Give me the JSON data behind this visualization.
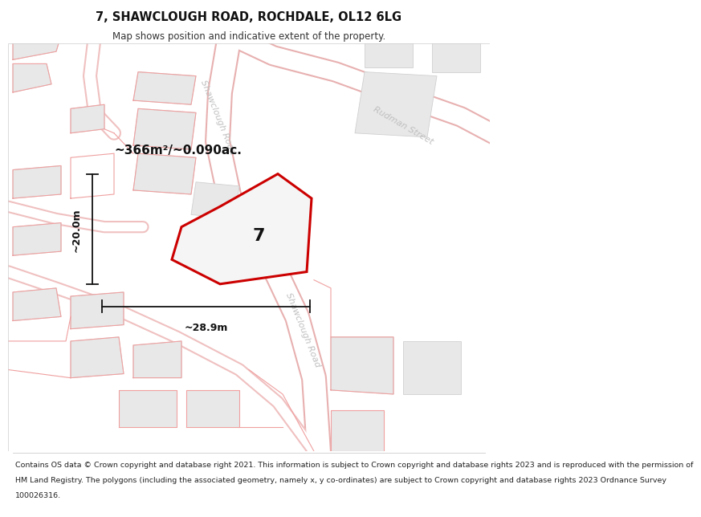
{
  "title": "7, SHAWCLOUGH ROAD, ROCHDALE, OL12 6LG",
  "subtitle": "Map shows position and indicative extent of the property.",
  "footer_lines": [
    "Contains OS data © Crown copyright and database right 2021. This information is subject to Crown copyright and database rights 2023 and is reproduced with the permission of",
    "HM Land Registry. The polygons (including the associated geometry, namely x, y co-ordinates) are subject to Crown copyright and database rights 2023 Ordnance Survey",
    "100026316."
  ],
  "area_label": "~366m²/~0.090ac.",
  "property_number": "7",
  "dim_width": "~28.9m",
  "dim_height": "~20.0m",
  "road_label1": "Shawclough Road",
  "road_label2": "Shawclough Road",
  "road_label3": "Rudman Street",
  "bg_color": "#ffffff",
  "map_bg": "#f7f7f7",
  "building_fill": "#e8e8e8",
  "building_edge": "#d0d0d0",
  "road_fill": "#ffffff",
  "road_border": "#f0b0b0",
  "property_fill": "#f8f8f8",
  "property_stroke": "#cc0000",
  "pink_line": "#f0a0a0",
  "road_label_color": "#c0c0c0",
  "dim_color": "#111111",
  "title_fontsize": 10.5,
  "subtitle_fontsize": 8.5,
  "footer_fontsize": 6.8,
  "area_fontsize": 11,
  "number_fontsize": 16,
  "dim_fontsize": 9,
  "road_label_fontsize": 8
}
